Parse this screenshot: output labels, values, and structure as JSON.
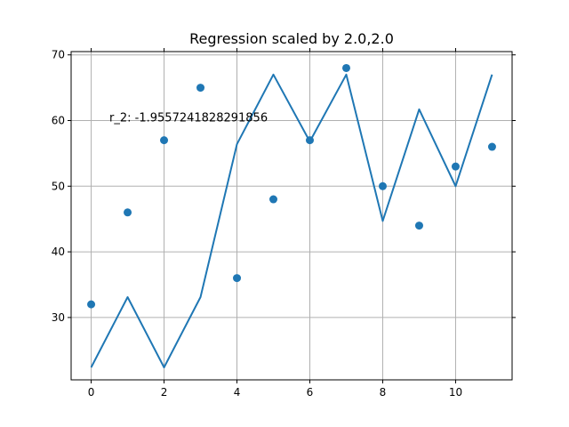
{
  "chart_data": {
    "type": "scatter",
    "title": "Regression scaled by 2.0,2.0",
    "xlabel": "",
    "ylabel": "",
    "xlim": [
      -0.55,
      11.55
    ],
    "ylim": [
      20.5,
      70.5
    ],
    "xticks": [
      0,
      2,
      4,
      6,
      8,
      10
    ],
    "yticks": [
      30,
      40,
      50,
      60,
      70
    ],
    "grid": true,
    "color": "#1f77b4",
    "annotation": {
      "text": "r_2: -1.9557241828291856",
      "x": 0.5,
      "y": 60
    },
    "series": [
      {
        "type": "scatter",
        "x": [
          0,
          1,
          2,
          3,
          4,
          5,
          6,
          7,
          8,
          9,
          10,
          11
        ],
        "y": [
          32,
          46,
          57,
          65,
          36,
          48,
          57,
          68,
          50,
          44,
          53,
          56
        ]
      },
      {
        "type": "line",
        "x": [
          0,
          1,
          2,
          3,
          4,
          5,
          6,
          7,
          8,
          9,
          10,
          11
        ],
        "y": [
          22.4,
          33.1,
          22.4,
          33.1,
          56.4,
          67.0,
          56.8,
          67.0,
          44.7,
          61.7,
          50.0,
          67.0
        ]
      }
    ]
  }
}
